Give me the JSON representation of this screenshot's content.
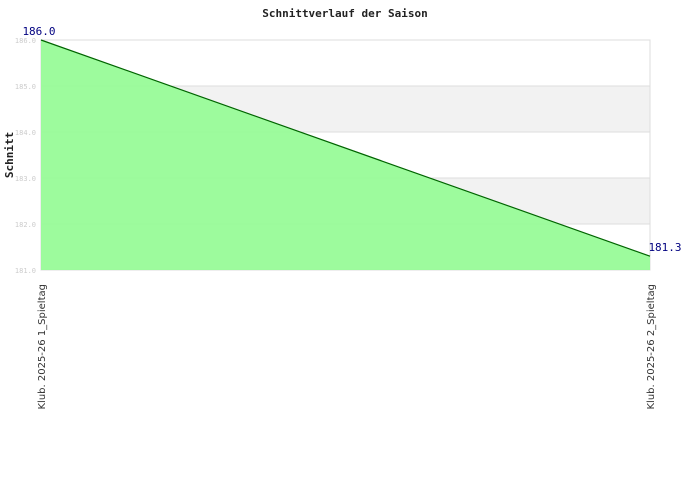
{
  "chart_data": {
    "type": "area",
    "title": "Schnittverlauf der Saison",
    "xlabel": "",
    "ylabel": "Schnitt",
    "categories": [
      "Klub. 2025-26  1_Spieltag",
      "Klub. 2025-26  2_Spieltag"
    ],
    "values": [
      186.0,
      181.3
    ],
    "data_labels": [
      "186.0",
      "181.3"
    ],
    "ylim": [
      181,
      186
    ],
    "yticks": [
      "181.0",
      "182.0",
      "183.0",
      "184.0",
      "185.0",
      "186.0"
    ],
    "grid": true,
    "colors": {
      "fill": "#98fb98",
      "line": "#006400",
      "label": "#000080",
      "band": "#f2f2f2"
    }
  }
}
